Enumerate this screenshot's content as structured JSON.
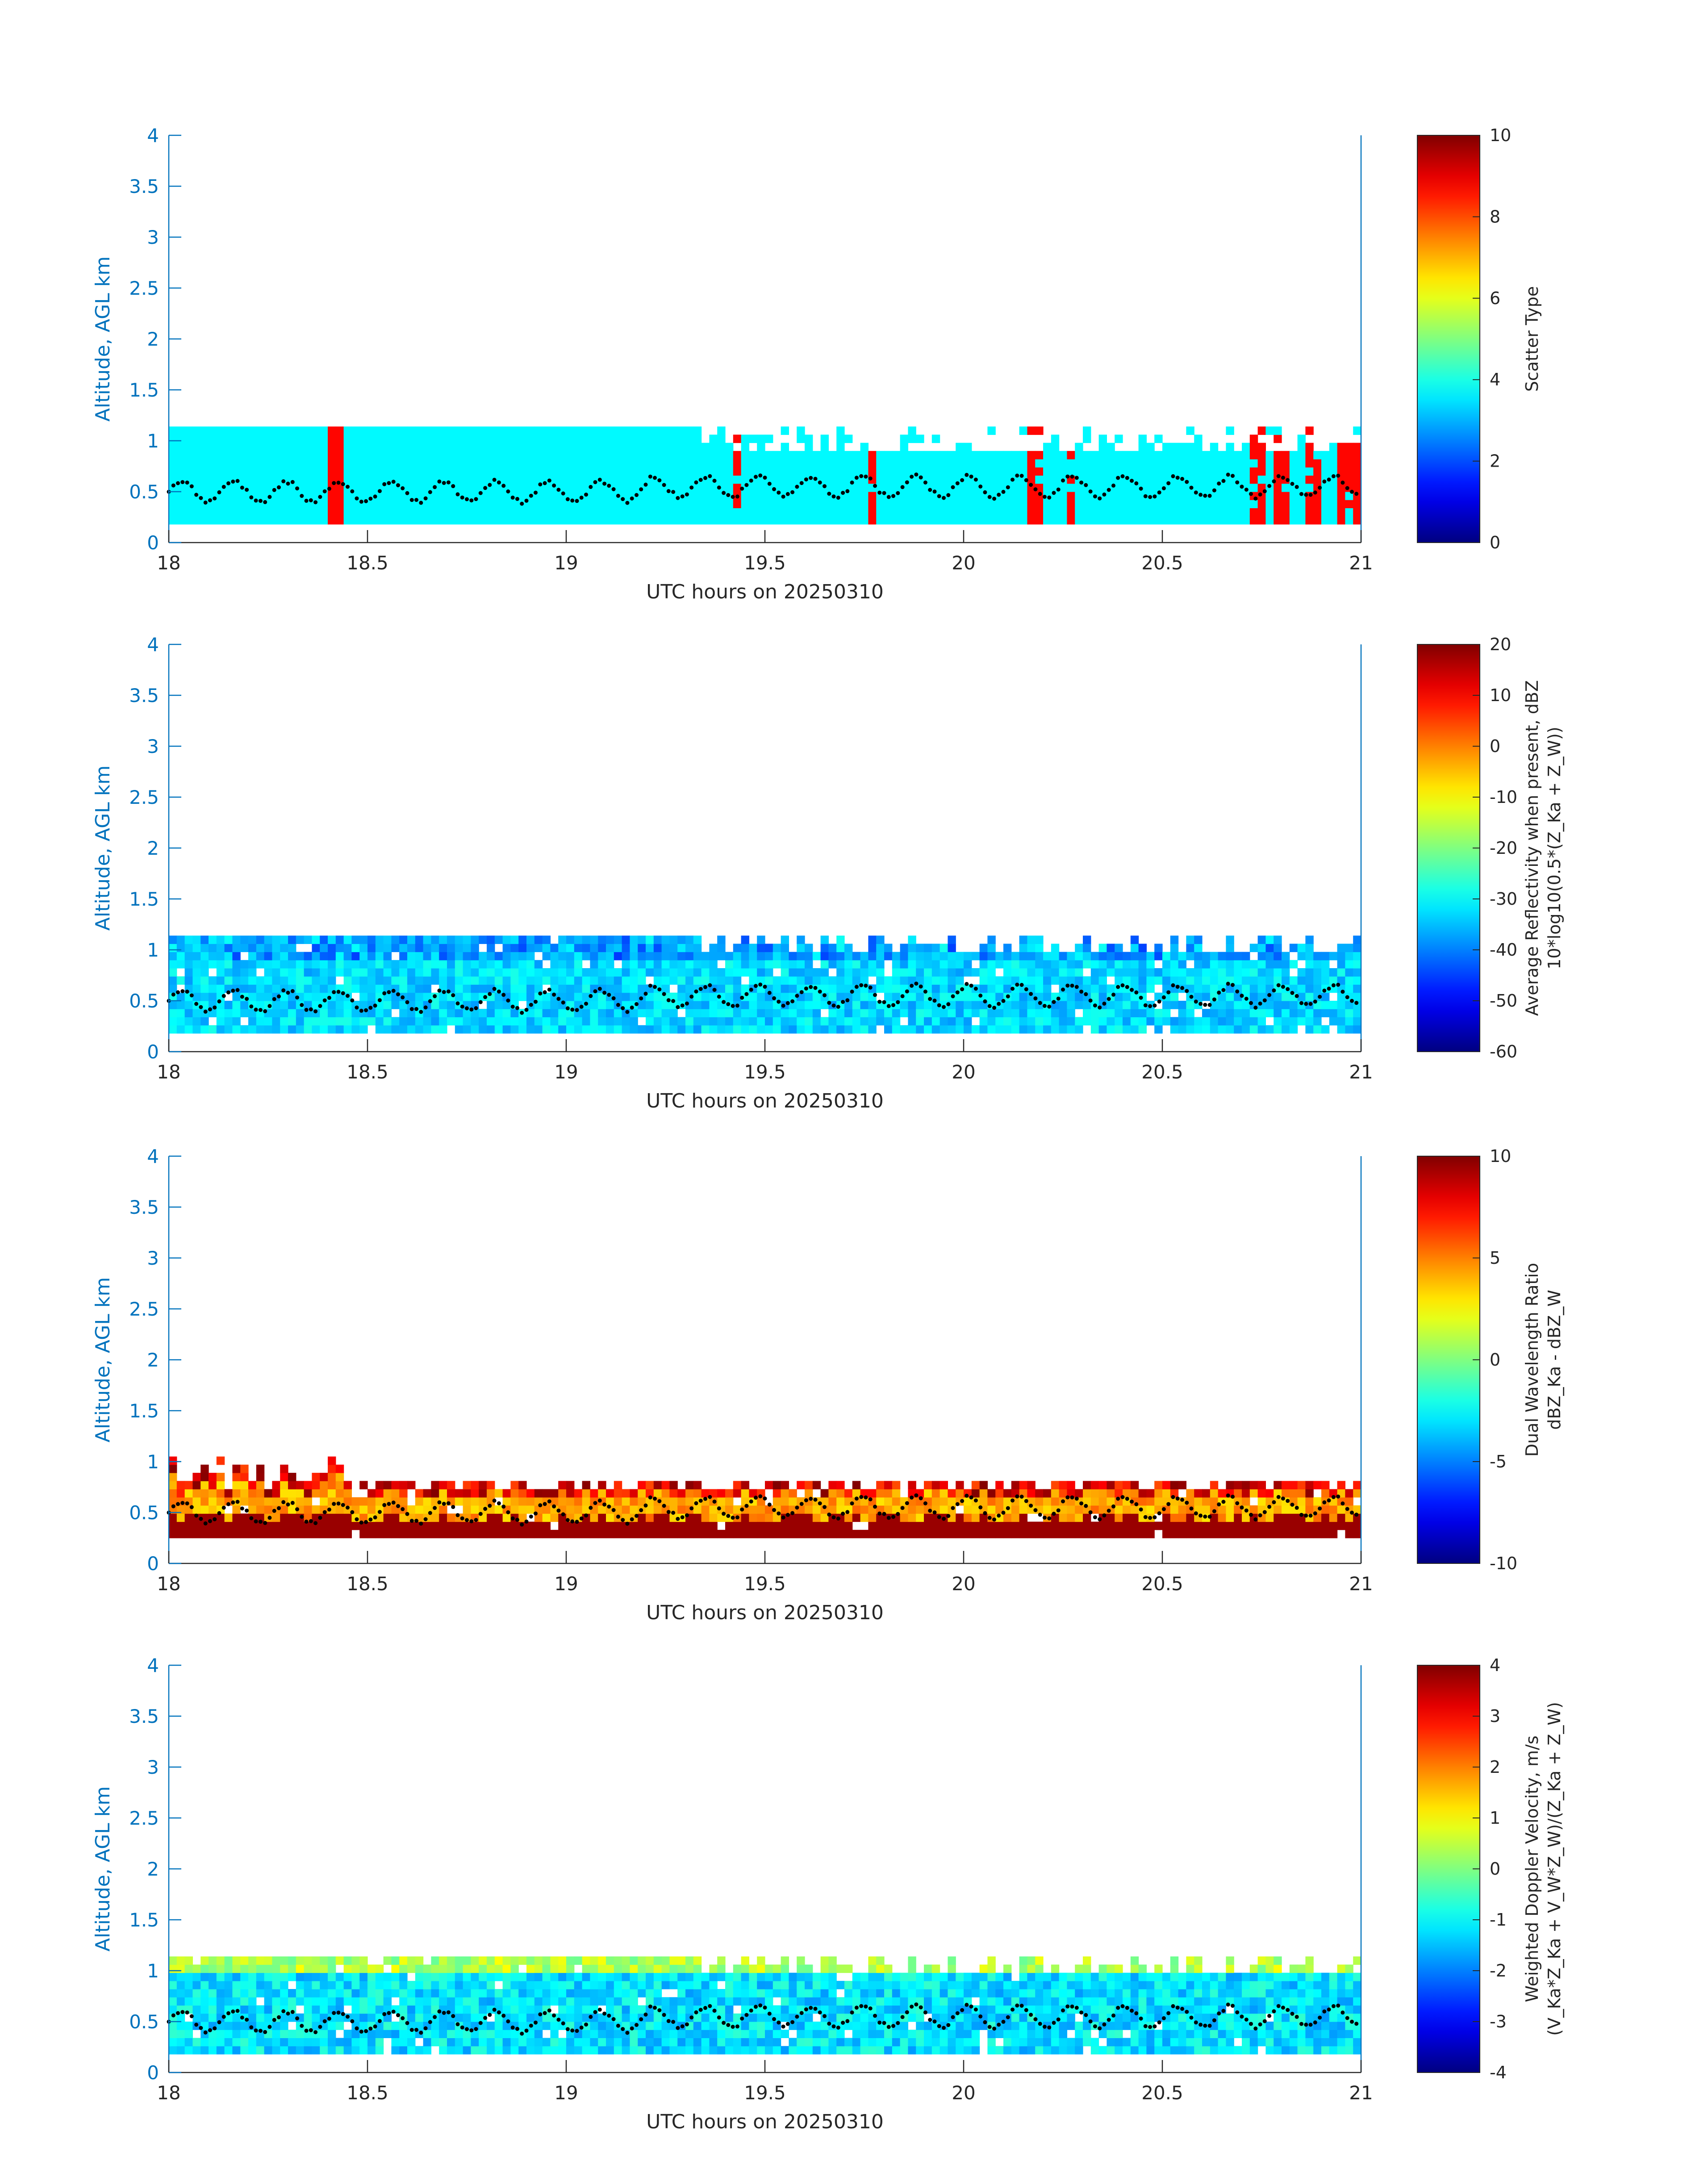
{
  "colors": {
    "axis_blue": "#0072BD",
    "cb_text": "#262626",
    "scatter_type_main": "#2FFFD0",
    "scatter_type_anomaly": "#FF4A12"
  },
  "colormap": "jet",
  "x_ticks": [
    "18",
    "18.5",
    "19",
    "19.5",
    "20",
    "20.5",
    "21"
  ],
  "y_ticks": [
    "0",
    "0.5",
    "1",
    "1.5",
    "2",
    "2.5",
    "3",
    "3.5",
    "4"
  ],
  "chart_data": [
    {
      "type": "heatmap",
      "xlabel": "UTC hours on 20250310",
      "ylabel": "Altitude, AGL km",
      "xlim": [
        18,
        21
      ],
      "ylim": [
        0,
        4
      ],
      "colorbar": {
        "label_lines": [
          "Scatter Type"
        ],
        "ticks": [
          "0",
          "2",
          "4",
          "6",
          "8",
          "10"
        ],
        "range": [
          0,
          10
        ]
      },
      "layer": {
        "bottom_km": 0.18,
        "top_km": 1.15,
        "typical_value": 3.7
      },
      "anomaly_value": 8.7,
      "anomaly_columns_hours": [
        18.41,
        19.42,
        19.76,
        20.17,
        20.26,
        20.73,
        20.78,
        20.8,
        20.86,
        20.87,
        20.95,
        20.98
      ],
      "marker_line": "black dots ~0.4–0.65 km (boundary layer height)"
    },
    {
      "type": "heatmap",
      "xlabel": "UTC hours on 20250310",
      "ylabel": "Altitude, AGL km",
      "xlim": [
        18,
        21
      ],
      "ylim": [
        0,
        4
      ],
      "colorbar": {
        "label_lines": [
          "Average Reflectivity when present, dBZ",
          "10*log10(0.5*(Z_Ka + Z_W))"
        ],
        "ticks": [
          "-60",
          "-50",
          "-40",
          "-30",
          "-20",
          "-10",
          "0",
          "10",
          "20"
        ],
        "range": [
          -60,
          20
        ]
      },
      "layer": {
        "bottom_km": 0.18,
        "top_km": 1.15,
        "typical_value": -35
      }
    },
    {
      "type": "heatmap",
      "xlabel": "UTC hours on 20250310",
      "ylabel": "Altitude, AGL km",
      "xlim": [
        18,
        21
      ],
      "ylim": [
        0,
        4
      ],
      "colorbar": {
        "label_lines": [
          "Dual Wavelength Ratio",
          "dBZ_Ka - dBZ_W"
        ],
        "ticks": [
          "-10",
          "-5",
          "0",
          "5",
          "10"
        ],
        "range": [
          -10,
          10
        ]
      },
      "layer": {
        "bottom_km": 0.25,
        "top_km": 0.75,
        "typical_value": 4
      }
    },
    {
      "type": "heatmap",
      "xlabel": "UTC hours on 20250310",
      "ylabel": "Altitude, AGL km",
      "xlim": [
        18,
        21
      ],
      "ylim": [
        0,
        4
      ],
      "colorbar": {
        "label_lines": [
          "Weighted Doppler Velocity, m/s",
          "(V_Ka*Z_Ka + V_W*Z_W)/(Z_Ka + Z_W)"
        ],
        "ticks": [
          "-4",
          "-3",
          "-2",
          "-1",
          "0",
          "1",
          "2",
          "3",
          "4"
        ],
        "range": [
          -4,
          4
        ]
      },
      "layer": {
        "bottom_km": 0.18,
        "top_km": 1.15,
        "typical_value": -1.5
      }
    }
  ]
}
